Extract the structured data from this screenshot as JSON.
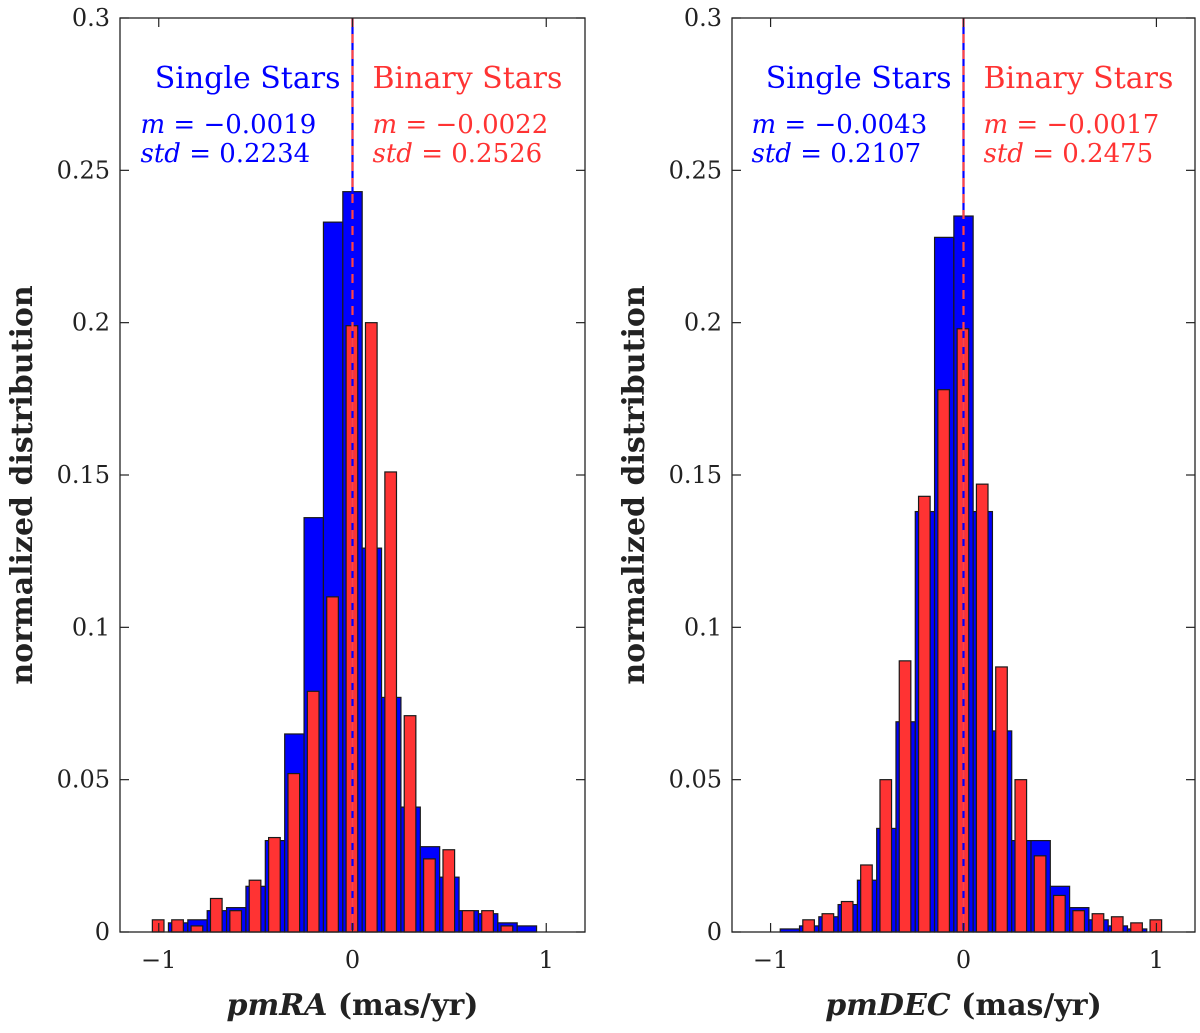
{
  "chart_data": [
    {
      "type": "bar",
      "title": "",
      "xlabel_var": "pmRA",
      "xlabel_unit": " (mas/yr)",
      "ylabel": "normalized distribution",
      "xlim": [
        -1.2,
        1.2
      ],
      "ylim": [
        0,
        0.3
      ],
      "xticks": [
        -1,
        0,
        1
      ],
      "xtick_labels": [
        "-1",
        "0",
        "1"
      ],
      "yticks": [
        0,
        0.05,
        0.1,
        0.15,
        0.2,
        0.25,
        0.3
      ],
      "ytick_labels": [
        "0",
        "0.05",
        "0.1",
        "0.15",
        "0.2",
        "0.25",
        "0.3"
      ],
      "series": [
        {
          "name": "Single Stars",
          "color": "#0000ff",
          "stat_m_label": "m",
          "stat_m_value": " = −0.0019",
          "stat_std_label": "std",
          "stat_std_value": " = 0.2234",
          "bin_width": 0.1,
          "x": [
            -0.9,
            -0.8,
            -0.7,
            -0.6,
            -0.5,
            -0.4,
            -0.3,
            -0.2,
            -0.1,
            0.0,
            0.1,
            0.2,
            0.3,
            0.4,
            0.5,
            0.6,
            0.7,
            0.8,
            0.9
          ],
          "values": [
            0.003,
            0.004,
            0.007,
            0.008,
            0.015,
            0.03,
            0.065,
            0.136,
            0.233,
            0.243,
            0.126,
            0.077,
            0.041,
            0.028,
            0.018,
            0.007,
            0.006,
            0.003,
            0.002
          ]
        },
        {
          "name": "Binary Stars",
          "color": "#ff3333",
          "stat_m_label": "m",
          "stat_m_value": " = −0.0022",
          "stat_std_label": "std",
          "stat_std_value": " = 0.2526",
          "bin_width": 0.1,
          "x": [
            -1.0,
            -0.9,
            -0.8,
            -0.7,
            -0.6,
            -0.5,
            -0.4,
            -0.3,
            -0.2,
            -0.1,
            0.0,
            0.1,
            0.2,
            0.3,
            0.4,
            0.5,
            0.6,
            0.7,
            0.8
          ],
          "values": [
            0.004,
            0.004,
            0.002,
            0.011,
            0.007,
            0.017,
            0.031,
            0.052,
            0.079,
            0.11,
            0.199,
            0.2,
            0.151,
            0.071,
            0.024,
            0.027,
            0.007,
            0.007,
            0.002
          ]
        }
      ]
    },
    {
      "type": "bar",
      "title": "",
      "xlabel_var": "pmDEC",
      "xlabel_unit": " (mas/yr)",
      "ylabel": "normalized distribution",
      "xlim": [
        -1.2,
        1.2
      ],
      "ylim": [
        0,
        0.3
      ],
      "xticks": [
        -1,
        0,
        1
      ],
      "xtick_labels": [
        "-1",
        "0",
        "1"
      ],
      "yticks": [
        0,
        0.05,
        0.1,
        0.15,
        0.2,
        0.25,
        0.3
      ],
      "ytick_labels": [
        "0",
        "0.05",
        "0.1",
        "0.15",
        "0.2",
        "0.25",
        "0.3"
      ],
      "series": [
        {
          "name": "Single Stars",
          "color": "#0000ff",
          "stat_m_label": "m",
          "stat_m_value": " = −0.0043",
          "stat_std_label": "std",
          "stat_std_value": " = 0.2107",
          "bin_width": 0.1,
          "x": [
            -0.9,
            -0.8,
            -0.7,
            -0.6,
            -0.5,
            -0.4,
            -0.3,
            -0.2,
            -0.1,
            0.0,
            0.1,
            0.2,
            0.3,
            0.4,
            0.5,
            0.6,
            0.7,
            0.8,
            0.9
          ],
          "values": [
            0.001,
            0.002,
            0.005,
            0.009,
            0.017,
            0.034,
            0.069,
            0.138,
            0.228,
            0.235,
            0.138,
            0.066,
            0.03,
            0.03,
            0.015,
            0.008,
            0.004,
            0.002,
            0.001
          ]
        },
        {
          "name": "Binary Stars",
          "color": "#ff3333",
          "stat_m_label": "m",
          "stat_m_value": " = −0.0017",
          "stat_std_label": "std",
          "stat_std_value": " = 0.2475",
          "bin_width": 0.1,
          "x": [
            -0.8,
            -0.7,
            -0.6,
            -0.5,
            -0.4,
            -0.3,
            -0.2,
            -0.1,
            0.0,
            0.1,
            0.2,
            0.3,
            0.4,
            0.5,
            0.6,
            0.7,
            0.8,
            0.9,
            1.0
          ],
          "values": [
            0.004,
            0.006,
            0.01,
            0.022,
            0.05,
            0.089,
            0.143,
            0.178,
            0.198,
            0.147,
            0.087,
            0.05,
            0.025,
            0.012,
            0.007,
            0.006,
            0.005,
            0.003,
            0.004
          ]
        }
      ]
    }
  ]
}
